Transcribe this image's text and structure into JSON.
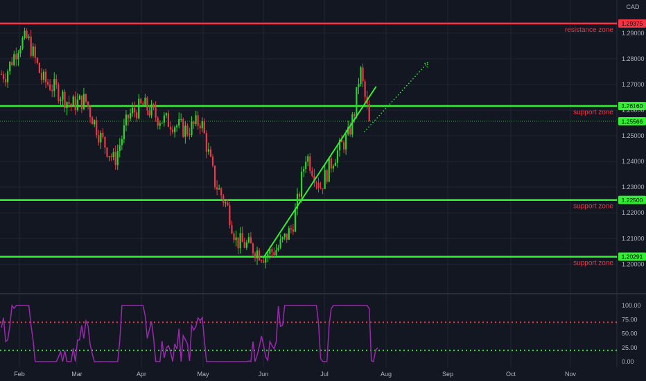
{
  "chart_data": {
    "type": "candlestick",
    "currency_label": "CAD",
    "colors": {
      "background": "#131722",
      "candle_up": "#26d926",
      "candle_down": "#f23645",
      "resistance_line": "#f23645",
      "support_line": "#33ee33",
      "trendline": "#33ee33",
      "oscillator": "#9c27b0",
      "overbought": "#f23645",
      "oversold": "#33ee33"
    },
    "y_axis": {
      "range": [
        1.1955,
        1.2975
      ],
      "ticks": [
        "1.29000",
        "1.28000",
        "1.27000",
        "1.26000",
        "1.25000",
        "1.24000",
        "1.23000",
        "1.22000",
        "1.21000",
        "1.20000"
      ]
    },
    "x_axis": {
      "ticks": [
        "Feb",
        "Mar",
        "Apr",
        "May",
        "Jun",
        "Jul",
        "Aug",
        "Sep",
        "Oct",
        "Nov"
      ]
    },
    "horizontal_levels": [
      {
        "value": 1.29375,
        "tag": "1.29375",
        "label": "resistance zone",
        "kind": "resistance"
      },
      {
        "value": 1.2616,
        "tag": "1.26160",
        "label": "support zone",
        "kind": "support"
      },
      {
        "value": 1.225,
        "tag": "1.22500",
        "label": "support zone",
        "kind": "support"
      },
      {
        "value": 1.20291,
        "tag": "1.20291",
        "label": "support zone",
        "kind": "support"
      }
    ],
    "last_price": {
      "value": 1.25566,
      "tag": "1.25566"
    },
    "trendline": {
      "from": [
        "Jun 1",
        1.2025
      ],
      "to": [
        "Jul 27",
        1.2692
      ]
    },
    "projection": {
      "from": [
        "Jul 21",
        1.2515
      ],
      "to": [
        "Aug 22",
        1.2785
      ]
    },
    "candles_sampled": [
      {
        "date": "Jan 25",
        "close": 1.274
      },
      {
        "date": "Feb 1",
        "close": 1.286
      },
      {
        "date": "Feb 5",
        "close": 1.288
      },
      {
        "date": "Feb 12",
        "close": 1.272
      },
      {
        "date": "Feb 19",
        "close": 1.268
      },
      {
        "date": "Feb 26",
        "close": 1.262
      },
      {
        "date": "Mar 5",
        "close": 1.264
      },
      {
        "date": "Mar 12",
        "close": 1.25
      },
      {
        "date": "Mar 19",
        "close": 1.24
      },
      {
        "date": "Mar 26",
        "close": 1.258
      },
      {
        "date": "Apr 2",
        "close": 1.262
      },
      {
        "date": "Apr 9",
        "close": 1.257
      },
      {
        "date": "Apr 16",
        "close": 1.255
      },
      {
        "date": "Apr 23",
        "close": 1.252
      },
      {
        "date": "Apr 30",
        "close": 1.256
      },
      {
        "date": "May 7",
        "close": 1.232
      },
      {
        "date": "May 11",
        "close": 1.226
      },
      {
        "date": "May 14",
        "close": 1.221
      },
      {
        "date": "May 18",
        "close": 1.209
      },
      {
        "date": "May 25",
        "close": 1.207
      },
      {
        "date": "Jun 1",
        "close": 1.2035
      },
      {
        "date": "Jun 8",
        "close": 1.206
      },
      {
        "date": "Jun 15",
        "close": 1.214
      },
      {
        "date": "Jun 18",
        "close": 1.225
      },
      {
        "date": "Jun 22",
        "close": 1.243
      },
      {
        "date": "Jun 29",
        "close": 1.23
      },
      {
        "date": "Jul 6",
        "close": 1.242
      },
      {
        "date": "Jul 13",
        "close": 1.25
      },
      {
        "date": "Jul 16",
        "close": 1.259
      },
      {
        "date": "Jul 19",
        "close": 1.276
      },
      {
        "date": "Jul 22",
        "close": 1.262
      },
      {
        "date": "Jul 24",
        "close": 1.2557
      }
    ],
    "oscillator": {
      "y_range": [
        -10,
        110
      ],
      "ticks": [
        "100.00",
        "75.00",
        "50.00",
        "25.00",
        "0.00"
      ],
      "overbought": 70,
      "oversold": 20
    }
  }
}
